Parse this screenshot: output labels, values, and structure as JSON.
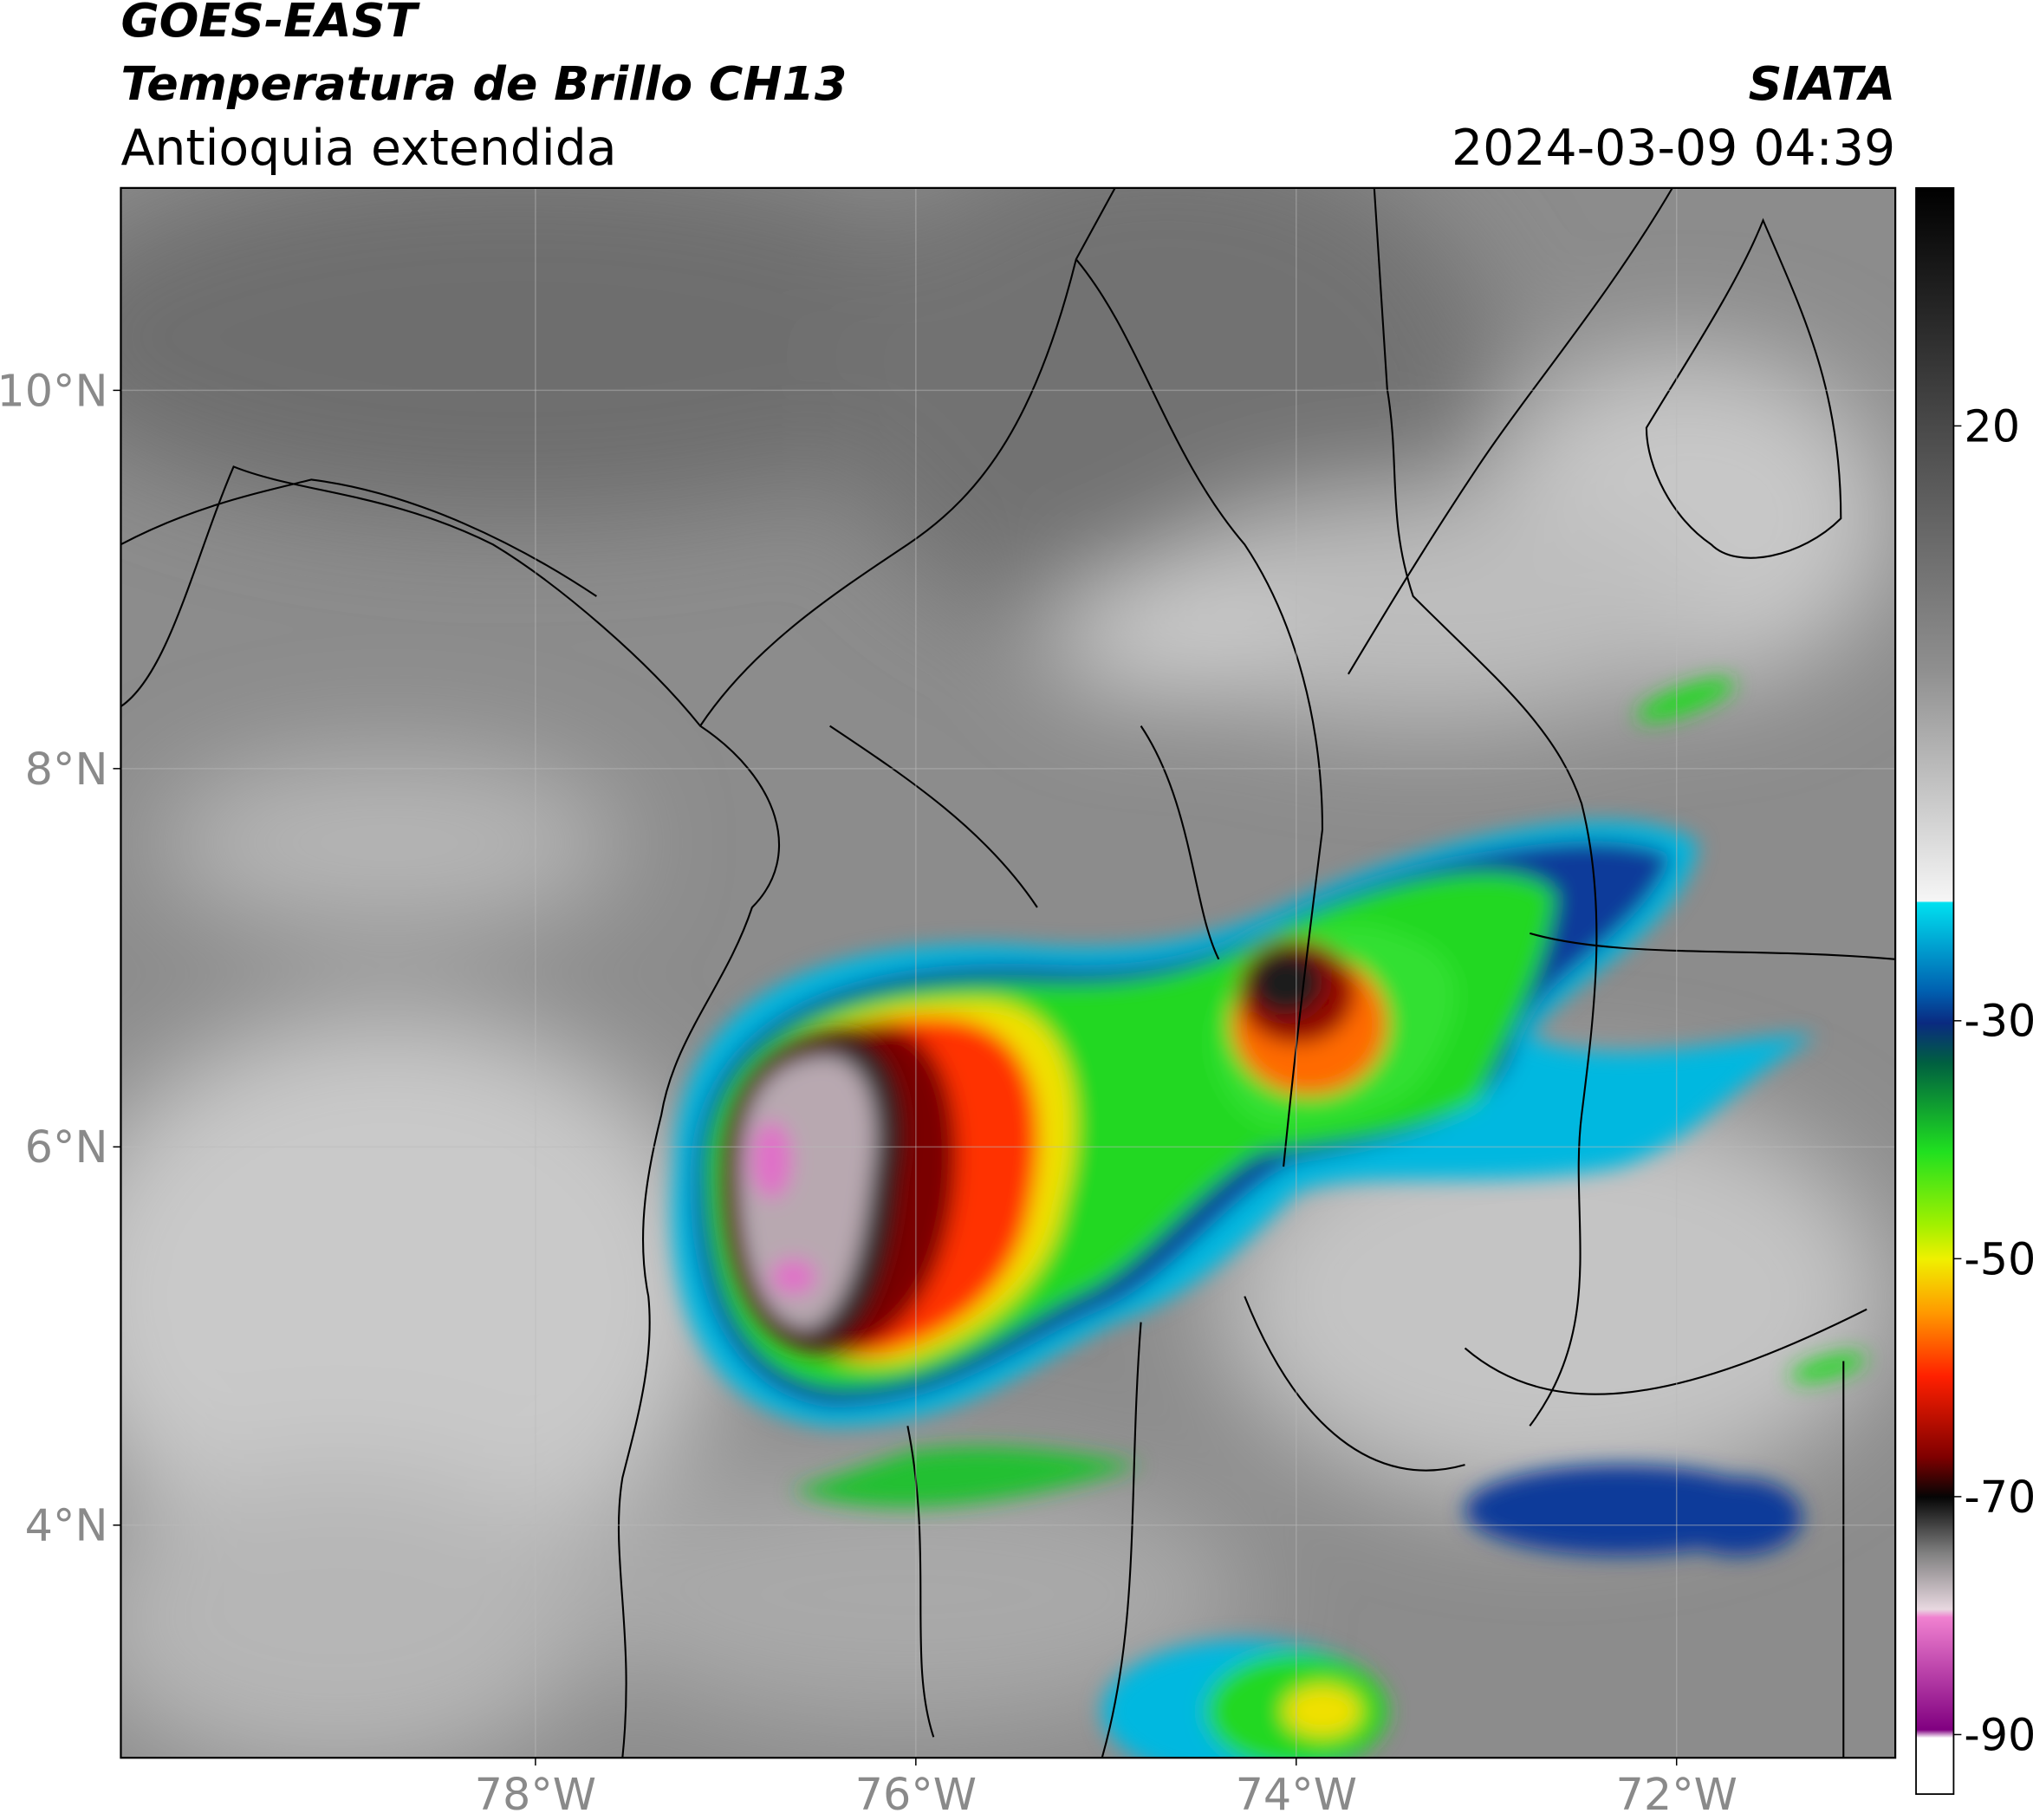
{
  "header": {
    "satellite": "GOES-EAST",
    "product": "Temperatura de Brillo CH13",
    "region": "Antioquia extendida",
    "source": "SIATA",
    "datetime": "2024-03-09 04:39"
  },
  "map": {
    "xlim": [
      -80.18,
      -70.85
    ],
    "ylim": [
      2.77,
      11.07
    ],
    "xticks": [
      {
        "value": -78,
        "label": "78°W"
      },
      {
        "value": -76,
        "label": "76°W"
      },
      {
        "value": -74,
        "label": "74°W"
      },
      {
        "value": -72,
        "label": "72°W"
      }
    ],
    "yticks": [
      {
        "value": 10,
        "label": "10°N"
      },
      {
        "value": 8,
        "label": "8°N"
      },
      {
        "value": 6,
        "label": "6°N"
      },
      {
        "value": 4,
        "label": "4°N"
      }
    ],
    "grid": true
  },
  "colorbar": {
    "lim": [
      -95,
      40
    ],
    "ticks": [
      20,
      -30,
      -50,
      -70,
      -90
    ]
  }
}
